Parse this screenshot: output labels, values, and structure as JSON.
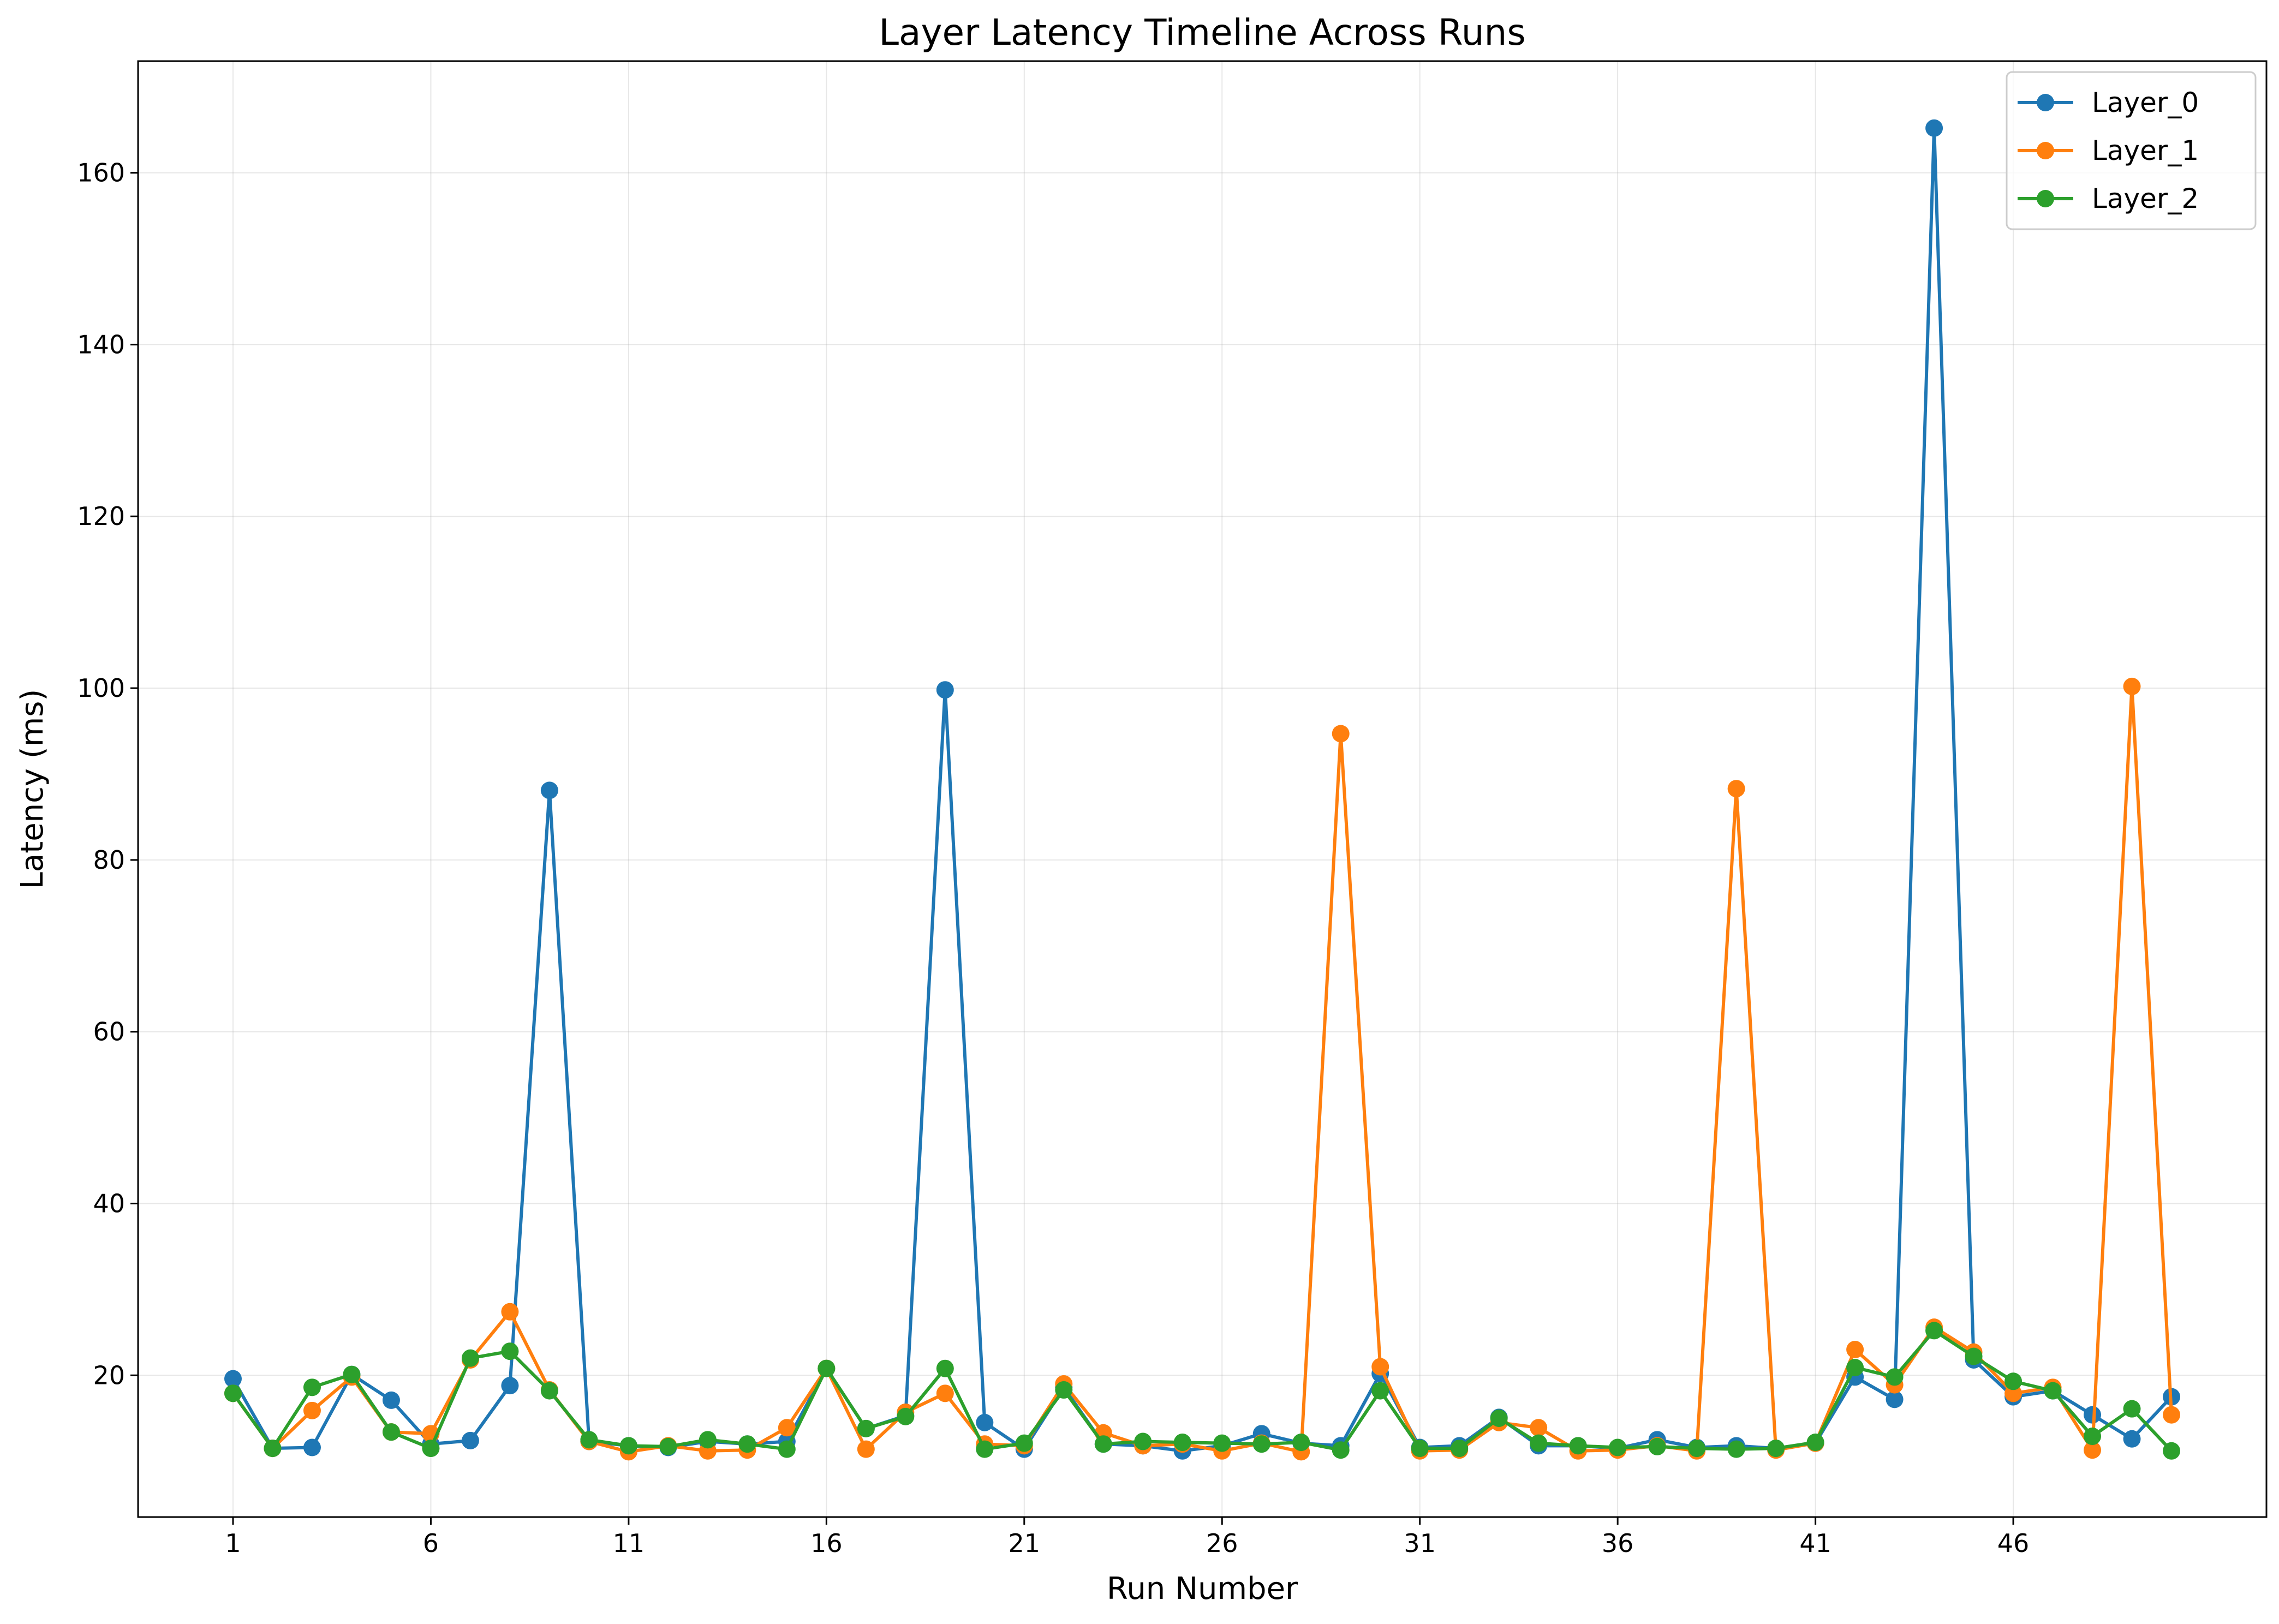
{
  "chart_data": {
    "type": "line",
    "title": "Layer Latency Timeline Across Runs",
    "xlabel": "Run Number",
    "ylabel": "Latency (ms)",
    "x": [
      1,
      2,
      3,
      4,
      5,
      6,
      7,
      8,
      9,
      10,
      11,
      12,
      13,
      14,
      15,
      16,
      17,
      18,
      19,
      20,
      21,
      22,
      23,
      24,
      25,
      26,
      27,
      28,
      29,
      30,
      31,
      32,
      33,
      34,
      35,
      36,
      37,
      38,
      39,
      40,
      41,
      42,
      43,
      44,
      45,
      46,
      47,
      48,
      49,
      50
    ],
    "xticks": [
      1,
      6,
      11,
      16,
      21,
      26,
      31,
      36,
      41,
      46
    ],
    "xlim": [
      -1.4,
      52.4
    ],
    "yticks": [
      20,
      40,
      60,
      80,
      100,
      120,
      140,
      160
    ],
    "ylim": [
      3.5,
      173
    ],
    "grid": true,
    "legend_position": "top-right",
    "series": [
      {
        "name": "Layer_0",
        "color": "#1f77b4",
        "values": [
          19.6,
          11.5,
          11.6,
          20.1,
          17.1,
          12.0,
          12.4,
          18.8,
          88.1,
          12.3,
          11.8,
          11.6,
          12.3,
          12.0,
          12.3,
          20.8,
          13.8,
          15.3,
          99.8,
          14.5,
          11.4,
          18.6,
          12.0,
          11.8,
          11.2,
          11.8,
          13.2,
          12.1,
          11.8,
          20.2,
          11.6,
          11.8,
          15.1,
          11.8,
          11.8,
          11.5,
          12.5,
          11.6,
          11.8,
          11.5,
          12.1,
          19.8,
          17.2,
          165.2,
          21.8,
          17.5,
          18.2,
          15.4,
          12.6,
          17.5
        ]
      },
      {
        "name": "Layer_1",
        "color": "#ff7f0e",
        "values": [
          17.9,
          11.5,
          15.9,
          19.8,
          13.4,
          13.2,
          21.8,
          27.4,
          18.3,
          12.3,
          11.1,
          11.8,
          11.2,
          11.3,
          13.9,
          20.8,
          11.4,
          15.7,
          17.9,
          12.0,
          11.8,
          19.0,
          13.3,
          11.8,
          12.0,
          11.2,
          12.1,
          11.1,
          94.7,
          21.0,
          11.2,
          11.3,
          14.5,
          13.9,
          11.2,
          11.3,
          11.8,
          11.2,
          88.3,
          11.3,
          12.1,
          23.0,
          18.9,
          25.6,
          22.7,
          17.9,
          18.6,
          11.3,
          100.2,
          15.4
        ]
      },
      {
        "name": "Layer_2",
        "color": "#2ca02c",
        "values": [
          17.9,
          11.5,
          18.6,
          20.1,
          13.4,
          11.5,
          22.0,
          22.8,
          18.2,
          12.5,
          11.8,
          11.7,
          12.5,
          12.0,
          11.4,
          20.8,
          13.8,
          15.2,
          20.8,
          11.4,
          12.1,
          18.3,
          12.0,
          12.3,
          12.2,
          12.1,
          12.0,
          12.2,
          11.3,
          18.2,
          11.5,
          11.5,
          15.0,
          12.1,
          11.8,
          11.6,
          11.7,
          11.5,
          11.4,
          11.5,
          12.2,
          20.9,
          19.8,
          25.2,
          22.2,
          19.3,
          18.2,
          12.9,
          16.1,
          11.2
        ]
      }
    ]
  }
}
